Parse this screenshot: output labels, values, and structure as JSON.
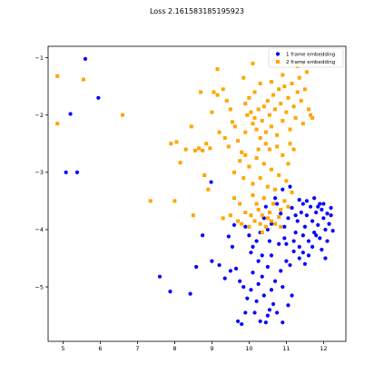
{
  "chart_data": {
    "type": "scatter",
    "title": "Loss 2.161583185195923",
    "xlabel": "",
    "ylabel": "",
    "xlim": [
      4.6,
      12.6
    ],
    "ylim": [
      -5.95,
      -0.8
    ],
    "xticks": [
      5,
      6,
      7,
      8,
      9,
      10,
      11,
      12
    ],
    "yticks": [
      -1,
      -2,
      -3,
      -4,
      -5
    ],
    "grid": false,
    "legend_position": "top-right",
    "series": [
      {
        "name": "1 frame embedding",
        "marker": "circle",
        "color": "#0000ff",
        "points": [
          [
            5.6,
            -1.02
          ],
          [
            5.95,
            -1.7
          ],
          [
            5.2,
            -1.98
          ],
          [
            5.08,
            -3.0
          ],
          [
            5.38,
            -3.0
          ],
          [
            8.98,
            -3.17
          ],
          [
            7.6,
            -4.82
          ],
          [
            7.88,
            -5.08
          ],
          [
            8.42,
            -5.12
          ],
          [
            8.58,
            -4.65
          ],
          [
            8.75,
            -4.1
          ],
          [
            9.0,
            -4.55
          ],
          [
            9.2,
            -4.62
          ],
          [
            9.35,
            -4.85
          ],
          [
            9.5,
            -4.72
          ],
          [
            9.65,
            -4.68
          ],
          [
            9.45,
            -4.12
          ],
          [
            9.6,
            -3.92
          ],
          [
            9.7,
            -5.6
          ],
          [
            9.8,
            -5.65
          ],
          [
            9.9,
            -5.45
          ],
          [
            9.95,
            -5.2
          ],
          [
            10.05,
            -5.05
          ],
          [
            10.2,
            -5.25
          ],
          [
            10.3,
            -5.6
          ],
          [
            10.45,
            -5.62
          ],
          [
            10.55,
            -5.4
          ],
          [
            10.65,
            -5.3
          ],
          [
            10.75,
            -5.45
          ],
          [
            10.9,
            -5.62
          ],
          [
            11.05,
            -5.32
          ],
          [
            11.15,
            -5.15
          ],
          [
            10.1,
            -4.75
          ],
          [
            10.25,
            -4.55
          ],
          [
            10.35,
            -4.82
          ],
          [
            10.5,
            -4.65
          ],
          [
            10.6,
            -4.45
          ],
          [
            10.7,
            -4.9
          ],
          [
            10.85,
            -4.72
          ],
          [
            11.0,
            -4.55
          ],
          [
            11.1,
            -4.62
          ],
          [
            11.2,
            -4.38
          ],
          [
            11.25,
            -4.05
          ],
          [
            11.35,
            -4.3
          ],
          [
            11.3,
            -3.85
          ],
          [
            11.4,
            -3.7
          ],
          [
            11.45,
            -4.1
          ],
          [
            11.5,
            -3.95
          ],
          [
            11.55,
            -3.75
          ],
          [
            11.6,
            -4.2
          ],
          [
            11.65,
            -3.6
          ],
          [
            11.7,
            -3.85
          ],
          [
            11.75,
            -4.05
          ],
          [
            11.8,
            -3.7
          ],
          [
            11.85,
            -3.92
          ],
          [
            11.9,
            -4.15
          ],
          [
            11.95,
            -3.65
          ],
          [
            12.0,
            -3.8
          ],
          [
            12.05,
            -4.0
          ],
          [
            12.1,
            -3.72
          ],
          [
            12.15,
            -3.9
          ],
          [
            12.2,
            -3.75
          ],
          [
            12.25,
            -4.02
          ],
          [
            11.45,
            -3.55
          ],
          [
            11.55,
            -3.5
          ],
          [
            11.75,
            -3.45
          ],
          [
            11.85,
            -3.6
          ],
          [
            12.0,
            -3.55
          ],
          [
            11.35,
            -3.48
          ],
          [
            11.15,
            -3.62
          ],
          [
            11.05,
            -3.8
          ],
          [
            10.95,
            -3.95
          ],
          [
            10.85,
            -3.72
          ],
          [
            10.75,
            -3.55
          ],
          [
            10.6,
            -3.9
          ],
          [
            10.5,
            -4.0
          ],
          [
            10.4,
            -3.8
          ],
          [
            10.3,
            -4.05
          ],
          [
            10.2,
            -4.2
          ],
          [
            10.1,
            -4.3
          ],
          [
            10.0,
            -4.1
          ],
          [
            9.9,
            -3.95
          ],
          [
            10.45,
            -3.6
          ],
          [
            10.7,
            -3.45
          ],
          [
            10.9,
            -3.3
          ],
          [
            11.1,
            -3.25
          ],
          [
            11.45,
            -4.4
          ],
          [
            11.7,
            -4.3
          ],
          [
            11.95,
            -4.35
          ],
          [
            12.05,
            -4.5
          ],
          [
            11.6,
            -4.45
          ],
          [
            10.8,
            -4.25
          ],
          [
            10.55,
            -4.2
          ],
          [
            10.9,
            -5.0
          ],
          [
            10.6,
            -5.05
          ],
          [
            10.4,
            -5.15
          ],
          [
            9.85,
            -5.0
          ],
          [
            9.75,
            -4.9
          ],
          [
            10.05,
            -4.4
          ],
          [
            10.25,
            -4.95
          ],
          [
            10.15,
            -5.45
          ],
          [
            10.5,
            -5.5
          ],
          [
            11.0,
            -4.25
          ],
          [
            11.2,
            -4.2
          ],
          [
            11.35,
            -4.5
          ],
          [
            11.8,
            -4.1
          ],
          [
            12.1,
            -4.2
          ],
          [
            11.9,
            -3.55
          ],
          [
            12.2,
            -3.62
          ],
          [
            11.25,
            -3.75
          ],
          [
            10.95,
            -4.15
          ],
          [
            11.5,
            -4.6
          ],
          [
            10.35,
            -4.45
          ],
          [
            9.55,
            -4.3
          ]
        ]
      },
      {
        "name": "2 frame embedding",
        "marker": "square",
        "color": "#ffa500",
        "points": [
          [
            4.85,
            -1.32
          ],
          [
            5.55,
            -1.38
          ],
          [
            4.85,
            -2.15
          ],
          [
            6.6,
            -2.0
          ],
          [
            7.35,
            -3.5
          ],
          [
            8.0,
            -3.5
          ],
          [
            7.9,
            -2.5
          ],
          [
            8.05,
            -2.47
          ],
          [
            8.15,
            -2.83
          ],
          [
            8.3,
            -2.6
          ],
          [
            8.45,
            -2.2
          ],
          [
            8.55,
            -2.62
          ],
          [
            8.65,
            -2.58
          ],
          [
            8.75,
            -2.62
          ],
          [
            8.85,
            -2.5
          ],
          [
            8.95,
            -2.58
          ],
          [
            8.8,
            -3.05
          ],
          [
            8.9,
            -3.3
          ],
          [
            8.5,
            -3.75
          ],
          [
            9.0,
            -1.95
          ],
          [
            9.05,
            -1.6
          ],
          [
            9.15,
            -1.65
          ],
          [
            9.3,
            -1.55
          ],
          [
            9.4,
            -1.75
          ],
          [
            9.2,
            -2.3
          ],
          [
            9.35,
            -2.4
          ],
          [
            9.5,
            -1.9
          ],
          [
            9.55,
            -2.12
          ],
          [
            9.62,
            -2.2
          ],
          [
            9.7,
            -2.45
          ],
          [
            9.6,
            -3.0
          ],
          [
            9.75,
            -2.8
          ],
          [
            9.85,
            -3.1
          ],
          [
            9.8,
            -2.65
          ],
          [
            9.9,
            -2.3
          ],
          [
            9.95,
            -2.0
          ],
          [
            9.9,
            -1.8
          ],
          [
            10.0,
            -1.7
          ],
          [
            10.05,
            -1.95
          ],
          [
            10.1,
            -2.15
          ],
          [
            10.15,
            -2.05
          ],
          [
            10.2,
            -2.25
          ],
          [
            10.25,
            -1.9
          ],
          [
            10.3,
            -2.4
          ],
          [
            10.35,
            -2.1
          ],
          [
            10.4,
            -1.85
          ],
          [
            10.45,
            -2.3
          ],
          [
            10.5,
            -1.75
          ],
          [
            10.55,
            -2.0
          ],
          [
            10.6,
            -2.2
          ],
          [
            10.65,
            -1.65
          ],
          [
            10.7,
            -1.9
          ],
          [
            10.75,
            -2.35
          ],
          [
            10.8,
            -1.55
          ],
          [
            10.85,
            -1.8
          ],
          [
            10.9,
            -2.1
          ],
          [
            10.95,
            -1.5
          ],
          [
            11.0,
            -1.95
          ],
          [
            11.05,
            -1.7
          ],
          [
            11.1,
            -2.25
          ],
          [
            11.15,
            -1.45
          ],
          [
            11.2,
            -1.85
          ],
          [
            11.25,
            -2.05
          ],
          [
            11.3,
            -1.6
          ],
          [
            11.35,
            -1.35
          ],
          [
            11.4,
            -1.75
          ],
          [
            11.45,
            -2.15
          ],
          [
            11.5,
            -1.55
          ],
          [
            11.55,
            -1.25
          ],
          [
            11.6,
            -1.9
          ],
          [
            11.65,
            -2.0
          ],
          [
            11.7,
            -2.05
          ],
          [
            11.45,
            -1.1
          ],
          [
            10.9,
            -1.3
          ],
          [
            10.6,
            -1.42
          ],
          [
            10.3,
            -1.45
          ],
          [
            9.85,
            -1.35
          ],
          [
            10.15,
            -1.6
          ],
          [
            9.9,
            -2.7
          ],
          [
            10.0,
            -2.9
          ],
          [
            10.1,
            -3.2
          ],
          [
            10.2,
            -2.75
          ],
          [
            10.3,
            -3.1
          ],
          [
            10.4,
            -2.85
          ],
          [
            10.5,
            -3.25
          ],
          [
            10.6,
            -2.95
          ],
          [
            10.7,
            -3.3
          ],
          [
            10.8,
            -3.05
          ],
          [
            10.9,
            -2.7
          ],
          [
            11.0,
            -3.15
          ],
          [
            11.05,
            -2.85
          ],
          [
            11.15,
            -3.35
          ],
          [
            10.75,
            -2.55
          ],
          [
            10.55,
            -2.6
          ],
          [
            9.7,
            -3.85
          ],
          [
            9.8,
            -3.9
          ],
          [
            9.9,
            -3.7
          ],
          [
            10.0,
            -3.95
          ],
          [
            10.05,
            -3.75
          ],
          [
            10.15,
            -3.85
          ],
          [
            10.25,
            -3.65
          ],
          [
            10.3,
            -3.9
          ],
          [
            10.35,
            -3.75
          ],
          [
            10.45,
            -3.95
          ],
          [
            10.5,
            -3.8
          ],
          [
            10.55,
            -3.7
          ],
          [
            10.6,
            -3.85
          ],
          [
            10.7,
            -3.9
          ],
          [
            10.8,
            -3.78
          ],
          [
            10.85,
            -3.65
          ],
          [
            10.95,
            -3.5
          ],
          [
            11.05,
            -3.6
          ],
          [
            10.2,
            -3.55
          ],
          [
            10.1,
            -3.4
          ],
          [
            10.4,
            -3.45
          ],
          [
            10.65,
            -3.55
          ],
          [
            9.5,
            -3.75
          ],
          [
            9.3,
            -3.8
          ],
          [
            9.6,
            -3.45
          ],
          [
            9.75,
            -3.55
          ],
          [
            11.2,
            -2.6
          ],
          [
            11.1,
            -2.5
          ],
          [
            10.45,
            -2.5
          ],
          [
            10.25,
            -2.6
          ],
          [
            9.45,
            -2.55
          ],
          [
            8.7,
            -1.6
          ],
          [
            9.15,
            -1.2
          ],
          [
            10.1,
            -1.1
          ],
          [
            10.65,
            -1.05
          ],
          [
            11.3,
            -1.15
          ],
          [
            10.85,
            -3.95
          ],
          [
            10.35,
            -4.05
          ]
        ]
      }
    ]
  }
}
